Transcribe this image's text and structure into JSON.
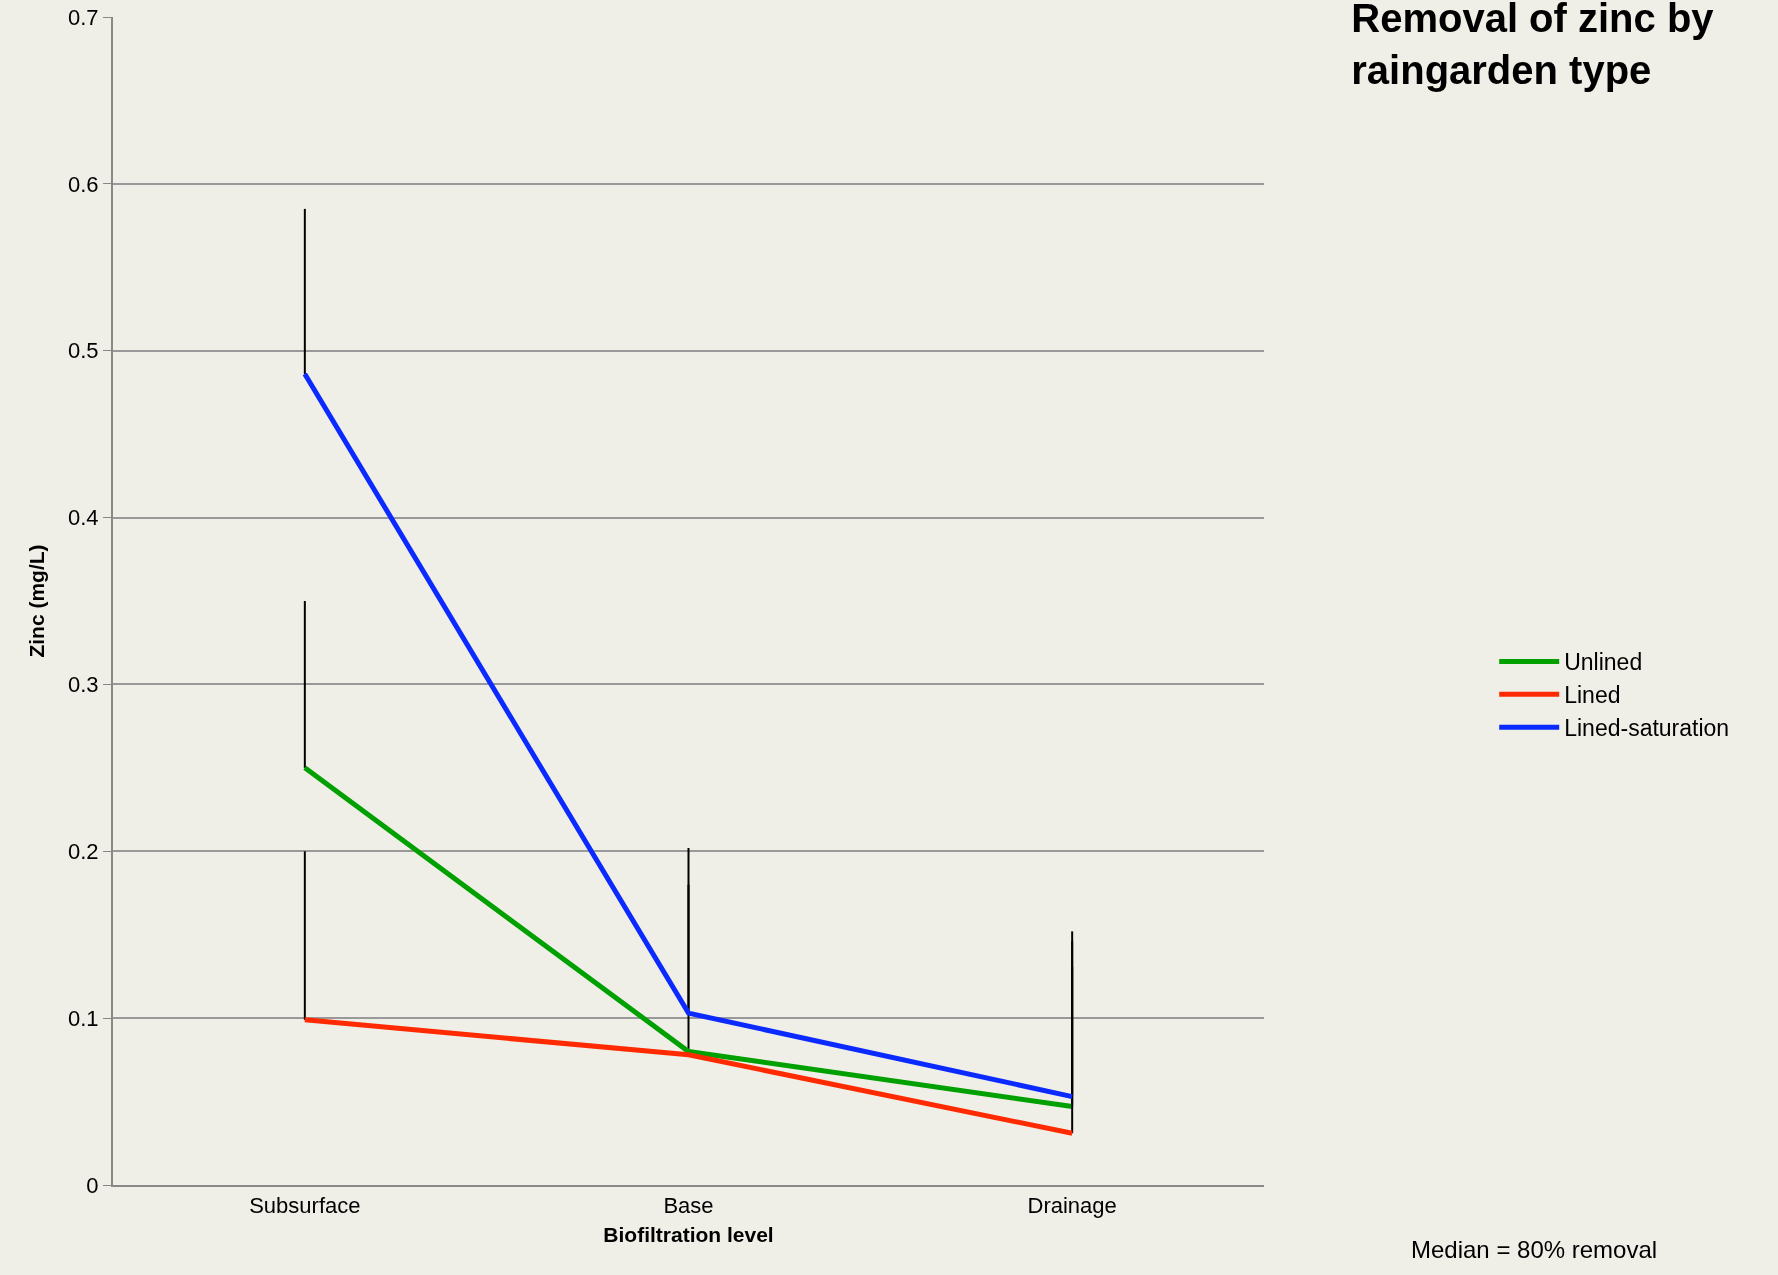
{
  "chart_data": {
    "type": "line",
    "title": "Removal of zinc by raingarden type",
    "xlabel": "Biofiltration level",
    "ylabel": "Zinc (mg/L)",
    "categories": [
      "Subsurface",
      "Base",
      "Drainage"
    ],
    "series": [
      {
        "name": "Unlined",
        "color": "#00a000",
        "values": [
          0.25,
          0.08,
          0.047
        ],
        "errors": [
          [
            0.25,
            0.35
          ],
          [
            0.08,
            0.18
          ],
          [
            0.047,
            0.146
          ]
        ]
      },
      {
        "name": "Lined",
        "color": "#ff2a00",
        "values": [
          0.099,
          0.078,
          0.031
        ],
        "errors": [
          [
            0.099,
            0.2
          ],
          null,
          [
            0.031,
            0.131
          ]
        ]
      },
      {
        "name": "Lined-saturation",
        "color": "#0a2aff",
        "values": [
          0.486,
          0.103,
          0.053
        ],
        "errors": [
          [
            0.486,
            0.585
          ],
          [
            0.103,
            0.202
          ],
          [
            0.053,
            0.152
          ]
        ]
      }
    ],
    "ylim": [
      0,
      0.7
    ],
    "yticks": [
      0,
      0.1,
      0.2,
      0.3,
      0.4,
      0.5,
      0.6,
      0.7
    ],
    "grid": "y",
    "legend": "right",
    "marker": "none",
    "line_style": "solid",
    "annotations": [
      "Median = 80% removal"
    ]
  }
}
